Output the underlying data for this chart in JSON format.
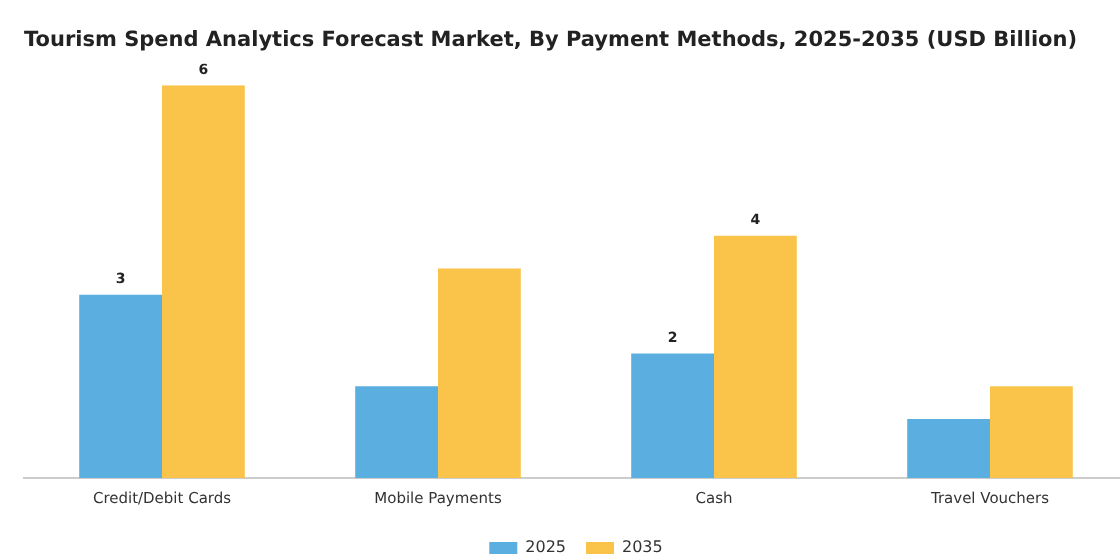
{
  "chart_data": {
    "type": "bar",
    "title": "Tourism Spend Analytics Forecast Market, By Payment Methods, 2025-2035 (USD Billion)",
    "categories": [
      "Credit/Debit Cards",
      "Mobile Payments",
      "Cash",
      "Travel Vouchers"
    ],
    "series": [
      {
        "name": "2025",
        "color": "#5aafe0",
        "values": [
          2.8,
          1.4,
          1.9,
          0.9
        ],
        "value_labels": [
          "3",
          null,
          "2",
          null
        ]
      },
      {
        "name": "2035",
        "color": "#f9c449",
        "values": [
          6.0,
          3.2,
          3.7,
          1.4
        ],
        "value_labels": [
          "6",
          null,
          "4",
          null
        ]
      }
    ],
    "grid": false,
    "legend": "bottom"
  }
}
